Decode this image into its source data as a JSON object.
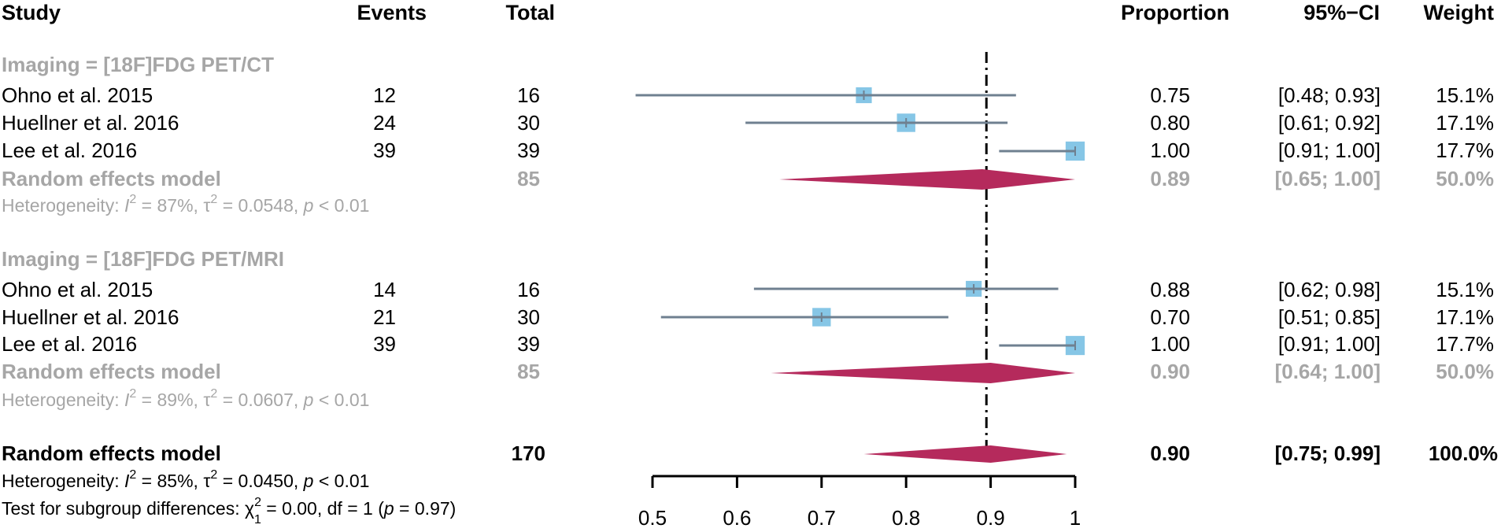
{
  "headers": {
    "study": "Study",
    "events": "Events",
    "total": "Total",
    "proportion": "Proportion",
    "ci": "95%−CI",
    "weight": "Weight"
  },
  "chart_data": {
    "type": "forest",
    "xlim": [
      0.5,
      1.0
    ],
    "ticks": [
      0.5,
      0.6,
      0.7,
      0.8,
      0.9,
      1.0
    ],
    "tick_labels": [
      "0.5",
      "0.6",
      "0.7",
      "0.8",
      "0.9",
      "1"
    ],
    "reference_line": 0.895,
    "colors": {
      "box": "#86c6e6",
      "whisker": "#6f8090",
      "diamond": "#b52a5c",
      "subgroup_text": "#a6a6a6"
    },
    "groups": [
      {
        "label": "Imaging = [18F]FDG PET/CT",
        "studies": [
          {
            "study": "Ohno et al. 2015",
            "events": "12",
            "total": "16",
            "est": 0.75,
            "lo": 0.48,
            "hi": 0.93,
            "prop": "0.75",
            "ci": "[0.48; 0.93]",
            "weight": "15.1%",
            "w": 15.1
          },
          {
            "study": "Huellner et al. 2016",
            "events": "24",
            "total": "30",
            "est": 0.8,
            "lo": 0.61,
            "hi": 0.92,
            "prop": "0.80",
            "ci": "[0.61; 0.92]",
            "weight": "17.1%",
            "w": 17.1
          },
          {
            "study": "Lee et al. 2016",
            "events": "39",
            "total": "39",
            "est": 1.0,
            "lo": 0.91,
            "hi": 1.0,
            "prop": "1.00",
            "ci": "[0.91; 1.00]",
            "weight": "17.7%",
            "w": 17.7
          }
        ],
        "summary": {
          "label": "Random effects model",
          "total": "85",
          "est": 0.89,
          "lo": 0.65,
          "hi": 1.0,
          "prop": "0.89",
          "ci": "[0.65; 1.00]",
          "weight": "50.0%"
        },
        "heterogeneity": {
          "prefix": "Heterogeneity: ",
          "I": "I",
          "I_exp": "2",
          "I_val": " = 87%, ",
          "tau": "τ",
          "tau_exp": "2",
          "tau_val": " = 0.0548, ",
          "p": "p",
          "p_val": " < 0.01"
        }
      },
      {
        "label": "Imaging = [18F]FDG PET/MRI",
        "studies": [
          {
            "study": "Ohno et al. 2015",
            "events": "14",
            "total": "16",
            "est": 0.88,
            "lo": 0.62,
            "hi": 0.98,
            "prop": "0.88",
            "ci": "[0.62; 0.98]",
            "weight": "15.1%",
            "w": 15.1
          },
          {
            "study": "Huellner et al. 2016",
            "events": "21",
            "total": "30",
            "est": 0.7,
            "lo": 0.51,
            "hi": 0.85,
            "prop": "0.70",
            "ci": "[0.51; 0.85]",
            "weight": "17.1%",
            "w": 17.1
          },
          {
            "study": "Lee et al. 2016",
            "events": "39",
            "total": "39",
            "est": 1.0,
            "lo": 0.91,
            "hi": 1.0,
            "prop": "1.00",
            "ci": "[0.91; 1.00]",
            "weight": "17.7%",
            "w": 17.7
          }
        ],
        "summary": {
          "label": "Random effects model",
          "total": "85",
          "est": 0.9,
          "lo": 0.64,
          "hi": 1.0,
          "prop": "0.90",
          "ci": "[0.64; 1.00]",
          "weight": "50.0%"
        },
        "heterogeneity": {
          "prefix": "Heterogeneity: ",
          "I": "I",
          "I_exp": "2",
          "I_val": " = 89%, ",
          "tau": "τ",
          "tau_exp": "2",
          "tau_val": " = 0.0607, ",
          "p": "p",
          "p_val": " < 0.01"
        }
      }
    ],
    "overall": {
      "label": "Random effects model",
      "total": "170",
      "est": 0.9,
      "lo": 0.75,
      "hi": 0.99,
      "prop": "0.90",
      "ci": "[0.75; 0.99]",
      "weight": "100.0%",
      "heterogeneity": {
        "prefix": "Heterogeneity: ",
        "I": "I",
        "I_exp": "2",
        "I_val": " = 85%, ",
        "tau": "τ",
        "tau_exp": "2",
        "tau_val": " = 0.0450, ",
        "p": "p",
        "p_val": " < 0.01"
      },
      "subgroup_test": {
        "prefix": "Test for subgroup differences: ",
        "chi": "χ",
        "chi_sup": "2",
        "chi_sub": "1",
        "chi_val": " = 0.00, df = 1 (",
        "p": "p",
        "p_val": " = 0.97)"
      }
    }
  }
}
